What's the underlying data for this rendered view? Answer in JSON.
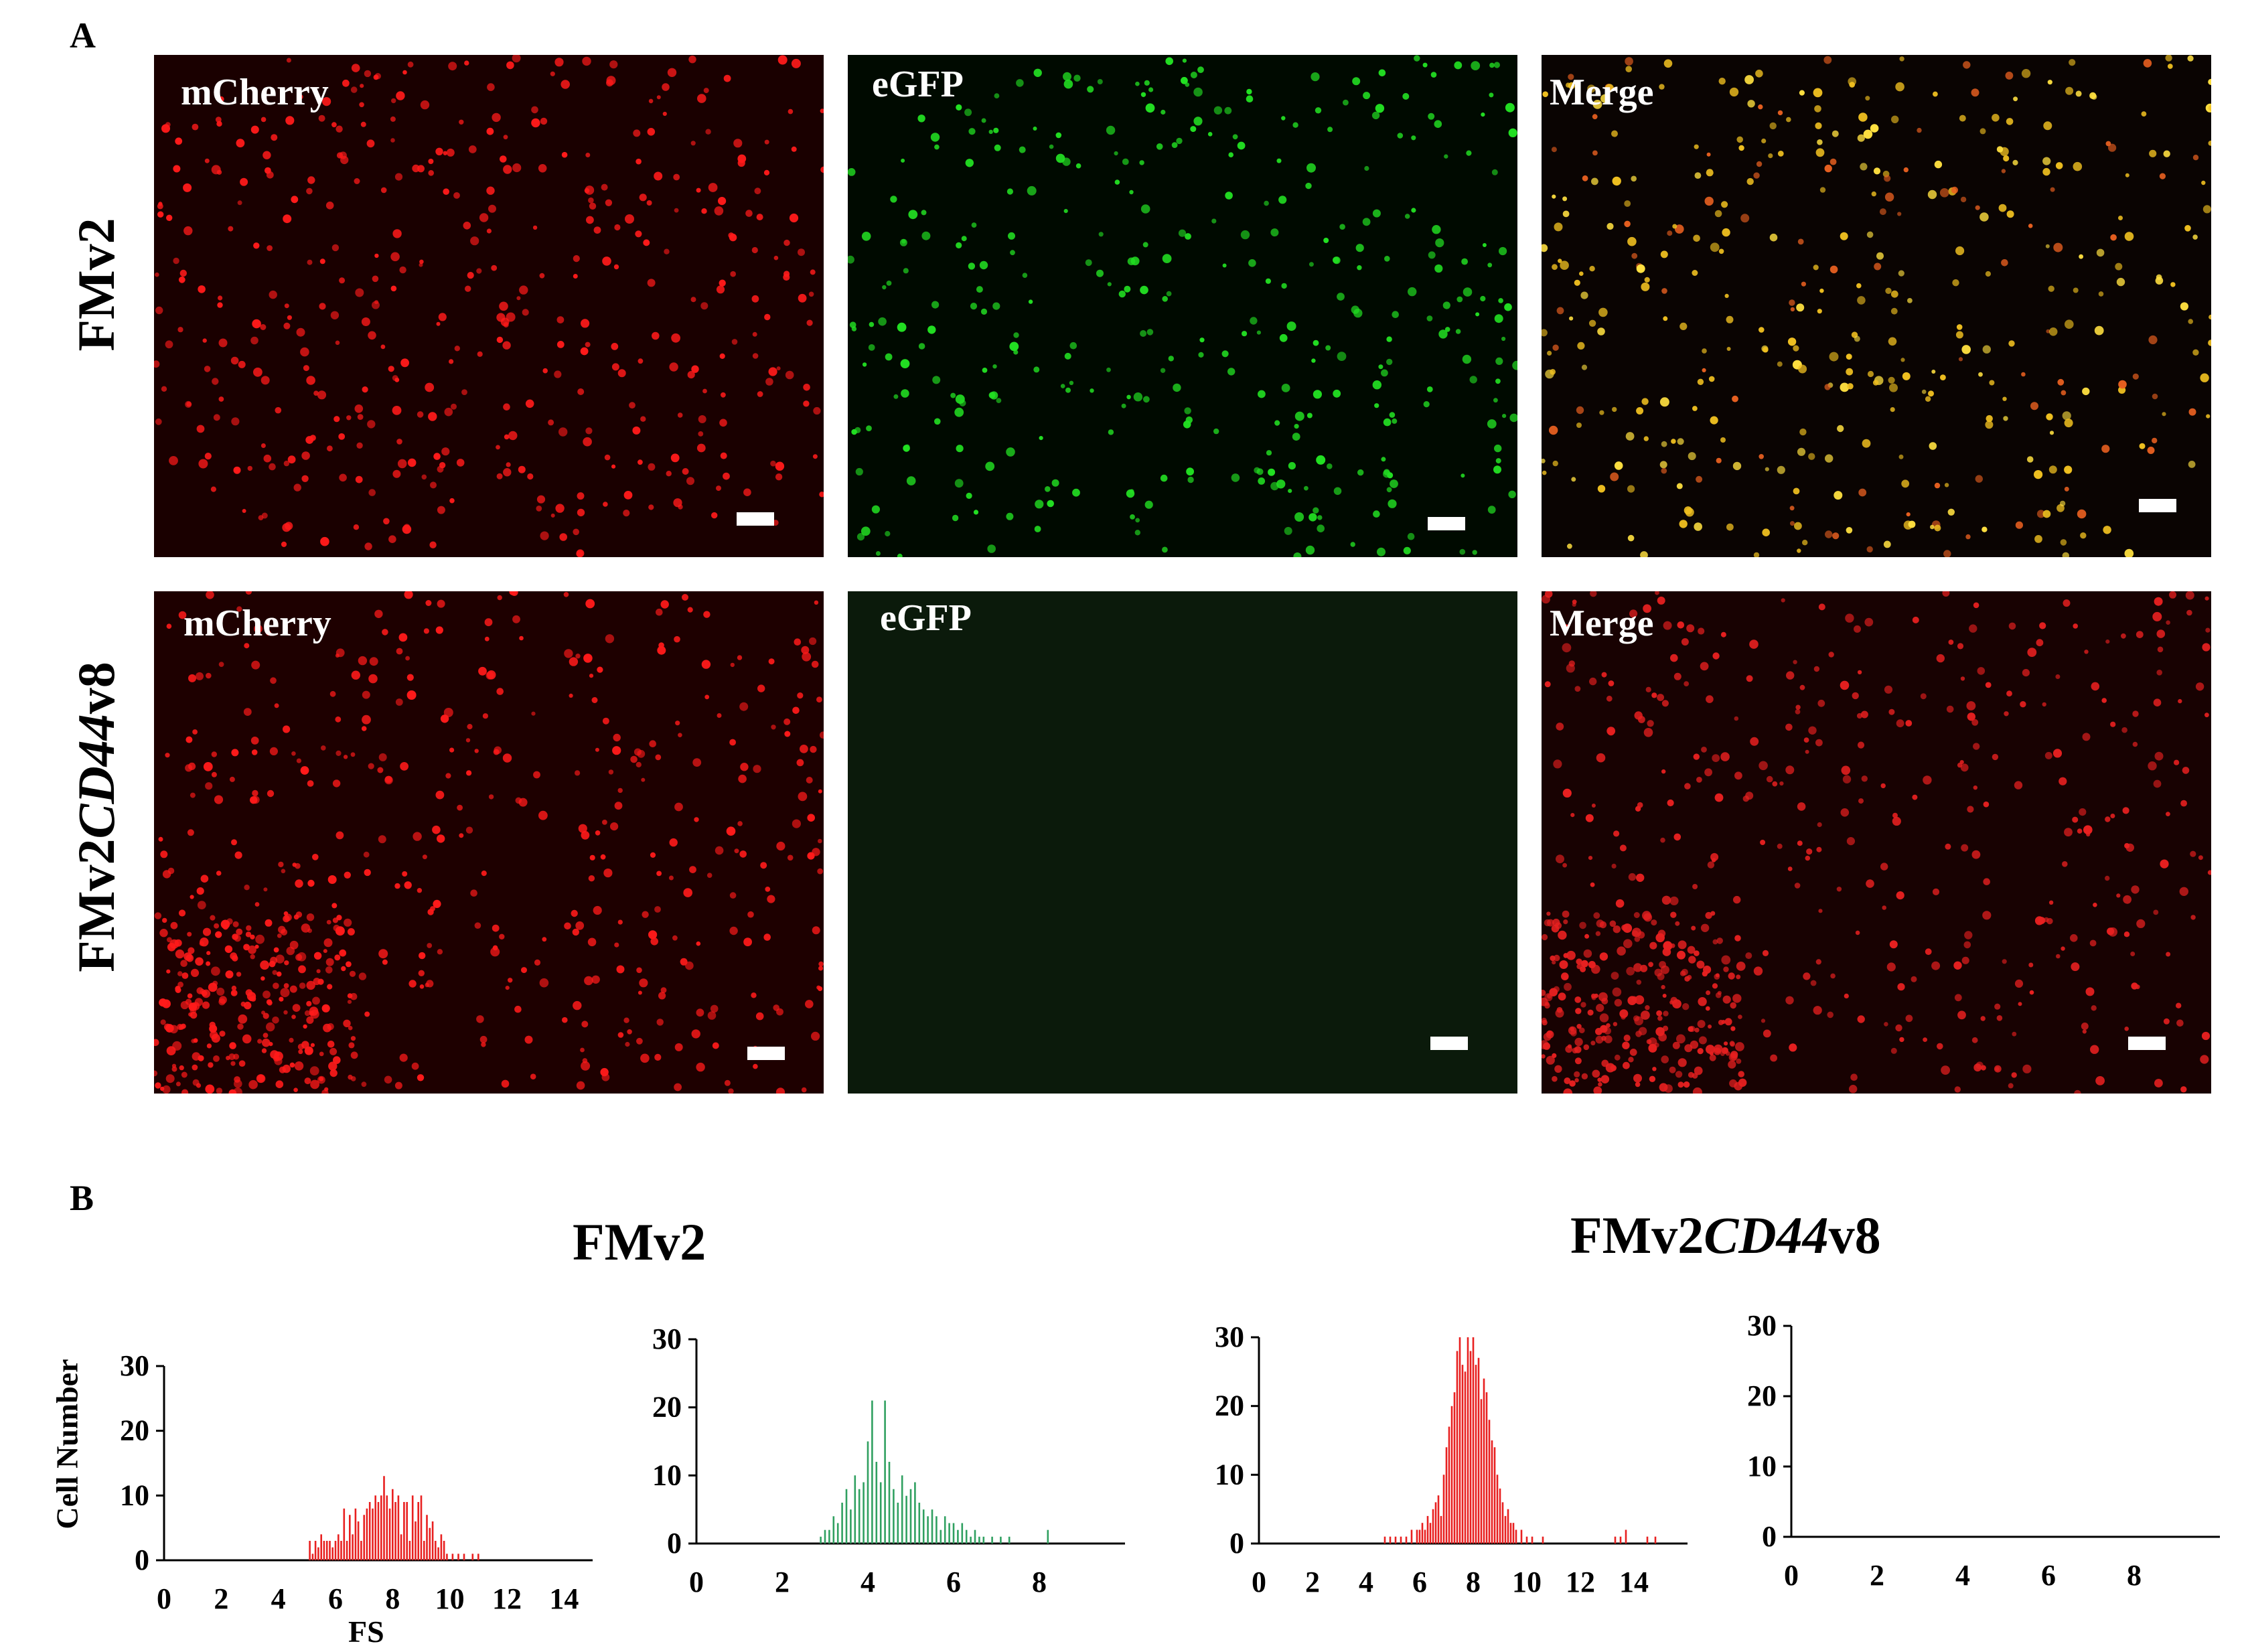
{
  "figure": {
    "panelA": {
      "letter": "A"
    },
    "panelB": {
      "letter": "B"
    },
    "rows": [
      {
        "label_main": "FMv2",
        "label_italic": "",
        "label_suffix": ""
      },
      {
        "label_main": "FMv2",
        "label_italic": "CD44",
        "label_suffix": "v8"
      }
    ],
    "micrographs": [
      {
        "channel": "mCherry",
        "background": "#1a0000",
        "cell_color": "#ff1a1a",
        "cells": 420
      },
      {
        "channel": "eGFP",
        "background": "#000a00",
        "cell_color": "#22e022",
        "cells": 360
      },
      {
        "channel": "Merge",
        "background": "#0a0402",
        "cell_color": "#f0c020",
        "cells": 400
      },
      {
        "channel": "mCherry",
        "background": "#1e0000",
        "cell_color": "#ff1a1a",
        "cells": 620
      },
      {
        "channel": "eGFP",
        "background": "#0b1a0b",
        "cell_color": "#0b1a0b",
        "cells": 0
      },
      {
        "channel": "Merge",
        "background": "#180202",
        "cell_color": "#e82020",
        "cells": 600
      }
    ],
    "groups": [
      {
        "title_main": "FMv2",
        "title_italic": "",
        "title_suffix": ""
      },
      {
        "title_main": "FMv2",
        "title_italic": "CD44",
        "title_suffix": "v8"
      }
    ],
    "ylabel": "Cell Number",
    "xlabel": "FS"
  },
  "chart_data": [
    {
      "type": "bar",
      "color": "#e82020",
      "xlim": [
        0,
        15
      ],
      "xticks": [
        "0",
        "2",
        "4",
        "6",
        "8",
        "10",
        "12",
        "14"
      ],
      "ylim": [
        0,
        30
      ],
      "yticks": [
        "0",
        "10",
        "20",
        "30"
      ],
      "x": [
        5.1,
        5.2,
        5.3,
        5.4,
        5.5,
        5.6,
        5.7,
        5.8,
        5.9,
        6.0,
        6.1,
        6.2,
        6.3,
        6.4,
        6.5,
        6.6,
        6.7,
        6.8,
        6.9,
        7.0,
        7.1,
        7.2,
        7.3,
        7.4,
        7.5,
        7.6,
        7.7,
        7.8,
        7.9,
        8.0,
        8.1,
        8.2,
        8.3,
        8.4,
        8.5,
        8.6,
        8.7,
        8.8,
        8.9,
        9.0,
        9.1,
        9.2,
        9.3,
        9.4,
        9.5,
        9.6,
        9.7,
        9.8,
        9.9,
        10.1,
        10.3,
        10.5,
        10.8,
        11.0
      ],
      "values": [
        3,
        1,
        3,
        2,
        4,
        3,
        3,
        3,
        2,
        3,
        4,
        3,
        8,
        3,
        7,
        4,
        8,
        6,
        3,
        7,
        8,
        9,
        8,
        10,
        9,
        10,
        13,
        10,
        8,
        11,
        9,
        10,
        4,
        9,
        9,
        3,
        10,
        6,
        9,
        10,
        3,
        7,
        5,
        6,
        3,
        2,
        4,
        3,
        1,
        1,
        1,
        1,
        1,
        1
      ]
    },
    {
      "type": "bar",
      "color": "#30a060",
      "xlim": [
        0,
        10
      ],
      "xticks": [
        "0",
        "2",
        "4",
        "6",
        "8"
      ],
      "ylim": [
        0,
        30
      ],
      "yticks": [
        "0",
        "10",
        "20",
        "30"
      ],
      "x": [
        2.9,
        3.0,
        3.1,
        3.2,
        3.3,
        3.4,
        3.5,
        3.6,
        3.7,
        3.8,
        3.9,
        4.0,
        4.1,
        4.2,
        4.3,
        4.4,
        4.5,
        4.6,
        4.7,
        4.8,
        4.9,
        5.0,
        5.1,
        5.2,
        5.3,
        5.4,
        5.5,
        5.6,
        5.7,
        5.8,
        5.9,
        6.0,
        6.1,
        6.2,
        6.3,
        6.4,
        6.5,
        6.6,
        6.7,
        6.9,
        7.1,
        7.3,
        8.2
      ],
      "values": [
        1,
        2,
        2,
        4,
        3,
        6,
        8,
        5,
        10,
        8,
        9,
        15,
        21,
        12,
        9,
        21,
        12,
        8,
        6,
        10,
        7,
        8,
        9,
        6,
        5,
        4,
        5,
        4,
        2,
        4,
        3,
        3,
        2,
        3,
        2,
        1,
        2,
        1,
        1,
        1,
        1,
        1,
        2
      ]
    },
    {
      "type": "bar",
      "color": "#e82020",
      "xlim": [
        0,
        16
      ],
      "xticks": [
        "0",
        "2",
        "4",
        "6",
        "8",
        "10",
        "12",
        "14"
      ],
      "ylim": [
        0,
        30
      ],
      "yticks": [
        "0",
        "10",
        "20",
        "30"
      ],
      "x": [
        4.7,
        4.9,
        5.1,
        5.3,
        5.5,
        5.7,
        5.9,
        6.0,
        6.1,
        6.2,
        6.3,
        6.4,
        6.5,
        6.6,
        6.7,
        6.8,
        6.9,
        7.0,
        7.1,
        7.2,
        7.3,
        7.4,
        7.5,
        7.6,
        7.7,
        7.8,
        7.9,
        8.0,
        8.1,
        8.2,
        8.3,
        8.4,
        8.5,
        8.6,
        8.7,
        8.8,
        8.9,
        9.0,
        9.1,
        9.2,
        9.3,
        9.4,
        9.5,
        9.6,
        9.8,
        10.0,
        10.2,
        10.6,
        13.3,
        13.5,
        13.7,
        14.5,
        14.8
      ],
      "values": [
        1,
        1,
        1,
        1,
        1,
        2,
        2,
        2,
        3,
        2,
        4,
        3,
        5,
        6,
        7,
        4,
        10,
        14,
        17,
        20,
        22,
        28,
        30,
        26,
        25,
        30,
        28,
        30,
        26,
        27,
        21,
        24,
        22,
        18,
        15,
        14,
        10,
        8,
        6,
        4,
        5,
        3,
        3,
        2,
        2,
        1,
        1,
        1,
        1,
        1,
        2,
        1,
        1
      ]
    },
    {
      "type": "bar",
      "color": "#e82020",
      "xlim": [
        0,
        10
      ],
      "xticks": [
        "0",
        "2",
        "4",
        "6",
        "8"
      ],
      "ylim": [
        0,
        30
      ],
      "yticks": [
        "0",
        "10",
        "20",
        "30"
      ],
      "x": [],
      "values": []
    }
  ]
}
